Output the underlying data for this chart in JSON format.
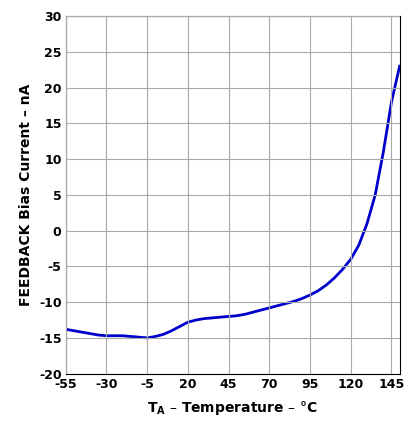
{
  "ylabel": "FEEDBACK Bias Current – nA",
  "xlim": [
    -55,
    150
  ],
  "ylim": [
    -20,
    30
  ],
  "xticks": [
    -55,
    -30,
    -5,
    20,
    45,
    70,
    95,
    120,
    145
  ],
  "yticks": [
    -20,
    -15,
    -10,
    -5,
    0,
    5,
    10,
    15,
    20,
    25,
    30
  ],
  "line_color": "#0000cc",
  "line_width": 2.0,
  "x_data": [
    -55,
    -50,
    -45,
    -40,
    -35,
    -30,
    -25,
    -20,
    -15,
    -10,
    -5,
    0,
    5,
    10,
    15,
    20,
    25,
    30,
    35,
    40,
    45,
    50,
    55,
    60,
    65,
    70,
    75,
    80,
    85,
    90,
    95,
    100,
    105,
    110,
    115,
    120,
    125,
    130,
    135,
    140,
    145,
    150
  ],
  "y_data": [
    -13.8,
    -14.0,
    -14.2,
    -14.4,
    -14.6,
    -14.7,
    -14.7,
    -14.7,
    -14.8,
    -14.9,
    -15.0,
    -14.8,
    -14.5,
    -14.0,
    -13.4,
    -12.8,
    -12.5,
    -12.3,
    -12.2,
    -12.1,
    -12.0,
    -11.9,
    -11.7,
    -11.4,
    -11.1,
    -10.8,
    -10.5,
    -10.2,
    -9.9,
    -9.5,
    -9.0,
    -8.4,
    -7.6,
    -6.6,
    -5.4,
    -4.0,
    -2.0,
    1.0,
    5.0,
    11.0,
    18.0,
    23.0
  ],
  "background_color": "#ffffff",
  "grid_color": "#aaaaaa",
  "tick_labelsize": 9,
  "label_fontsize": 10,
  "figsize": [
    4.16,
    4.37
  ],
  "dpi": 100
}
